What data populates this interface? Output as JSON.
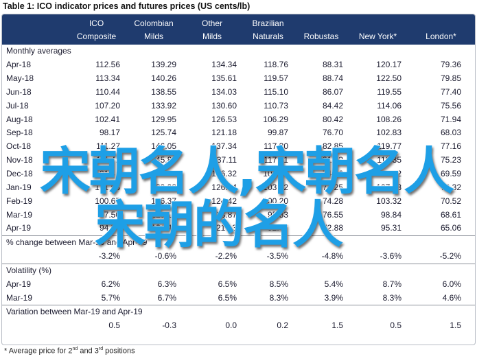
{
  "title": "Table 1:  ICO indicator prices and futures prices (US cents/lb)",
  "header": [
    [
      "ICO",
      "Composite"
    ],
    [
      "Colombian",
      "Milds"
    ],
    [
      "Other",
      "Milds"
    ],
    [
      "Brazilian",
      "Naturals"
    ],
    [
      "Robustas"
    ],
    [
      "New York*"
    ],
    [
      "London*"
    ]
  ],
  "sections": [
    {
      "label": "Monthly averages",
      "rows": [
        [
          "Apr-18",
          "112.56",
          "139.29",
          "134.34",
          "118.76",
          "88.31",
          "120.17",
          "79.36"
        ],
        [
          "May-18",
          "113.34",
          "140.26",
          "135.61",
          "119.57",
          "88.74",
          "122.50",
          "79.85"
        ],
        [
          "Jun-18",
          "110.44",
          "138.55",
          "134.03",
          "115.10",
          "86.07",
          "119.55",
          "77.40"
        ],
        [
          "Jul-18",
          "107.20",
          "133.92",
          "130.60",
          "110.73",
          "84.42",
          "114.06",
          "75.56"
        ],
        [
          "Aug-18",
          "102.41",
          "129.95",
          "126.53",
          "106.29",
          "80.42",
          "108.26",
          "71.94"
        ],
        [
          "Sep-18",
          "98.17",
          "125.74",
          "121.18",
          "99.87",
          "76.70",
          "102.83",
          "68.03"
        ],
        [
          "Oct-18",
          "111.27",
          "146.05",
          "137.34",
          "117.30",
          "82.85",
          "119.77",
          "77.16"
        ],
        [
          "Nov-18",
          "111.42",
          "145.87",
          "137.11",
          "117.61",
          "81.53",
          "119.35",
          "75.23"
        ],
        [
          "Dec-18",
          "101.82",
          "131.78",
          "126.32",
          "104.08",
          "74.16",
          "108.52",
          "69.59"
        ],
        [
          "Jan-19",
          "101.53",
          "129.98",
          "126.04",
          "103.02",
          "74.25",
          "107.93",
          "70.32"
        ],
        [
          "Feb-19",
          "100.67",
          "126.37",
          "124.42",
          "100.20",
          "74.28",
          "103.32",
          "70.52"
        ],
        [
          "Mar-19",
          "97.50",
          "125.17",
          "123.87",
          "95.83",
          "76.55",
          "98.84",
          "68.61"
        ],
        [
          "Apr-19",
          "94.38",
          "124.42",
          "121.13",
          "92.47",
          "72.88",
          "95.31",
          "65.06"
        ]
      ]
    },
    {
      "label": "% change between Mar-19 and Apr-19",
      "rows": [
        [
          "-3.2%",
          "-0.6%",
          "-2.2%",
          "-3.5%",
          "-4.8%",
          "-3.6%",
          "-5.2%"
        ]
      ]
    },
    {
      "label": "Volatility (%)",
      "rows": [
        [
          "Apr-19",
          "6.2%",
          "6.3%",
          "6.5%",
          "8.5%",
          "5.4%",
          "8.7%",
          "6.0%"
        ],
        [
          "Mar-19",
          "5.7%",
          "6.7%",
          "6.5%",
          "8.3%",
          "3.9%",
          "8.3%",
          "4.6%"
        ]
      ]
    },
    {
      "label": "Variation between Mar-19 and Apr-19",
      "rows": [
        [
          "0.5",
          "-0.3",
          "0.0",
          "0.2",
          "1.5",
          "0.5",
          "1.5"
        ]
      ]
    }
  ],
  "footnote": [
    "* Average price for 2",
    "nd",
    " and 3",
    "rd",
    " positions"
  ],
  "overlay": [
    "宋朝名人,宋朝名人",
    "宋朝的名人"
  ]
}
